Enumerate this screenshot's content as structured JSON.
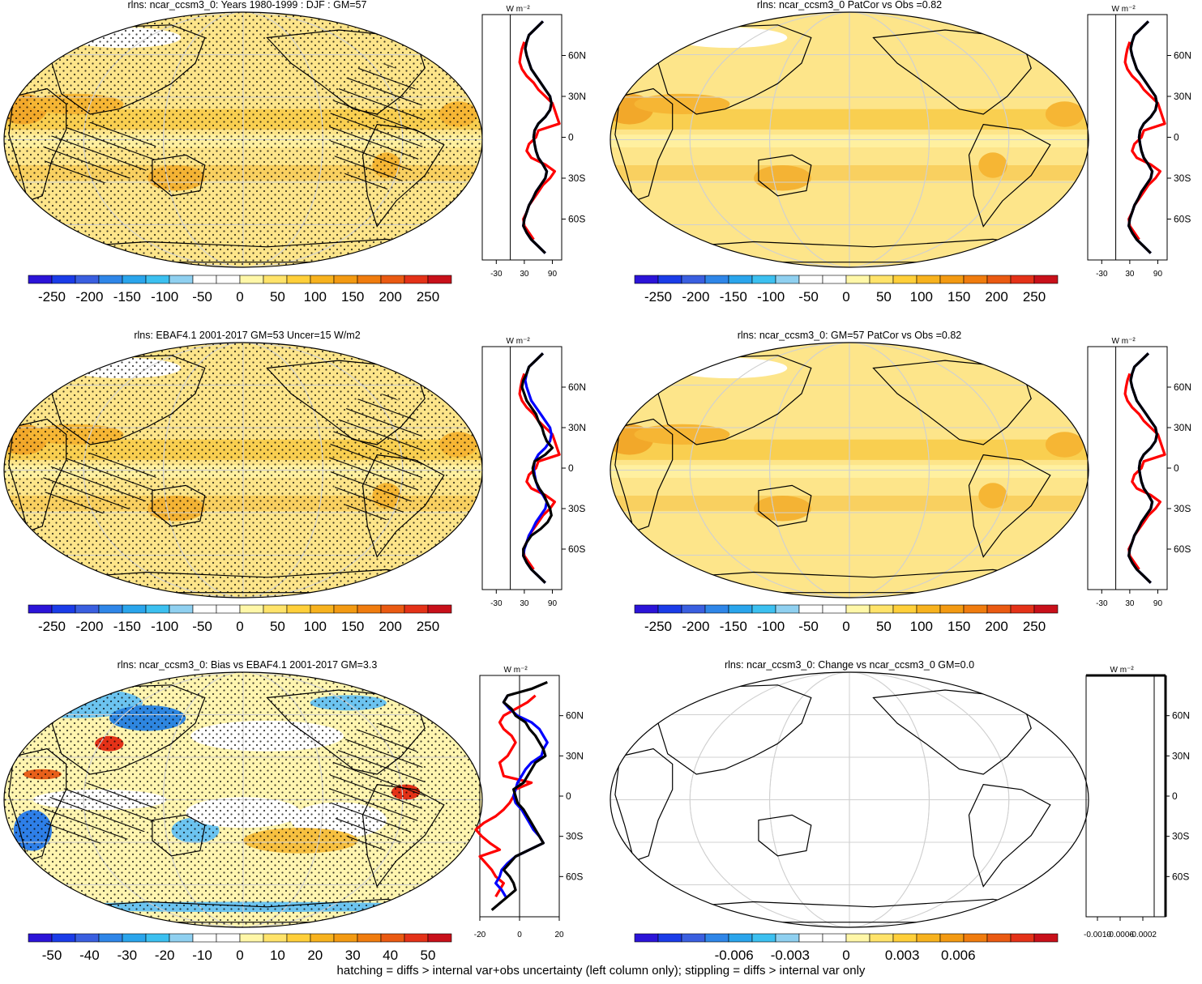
{
  "footnote": "hatching = diffs > internal var+obs uncertainty (left column only); stippling = diffs > internal var only",
  "zonal_unit": "W m⁻²",
  "lat_ticks": [
    "60N",
    "30N",
    "0",
    "30S",
    "60S"
  ],
  "colors": {
    "abs_scale": [
      "#2b14d8",
      "#1b3ce8",
      "#3a5fe0",
      "#2f86e8",
      "#2aa5ec",
      "#3cc0f0",
      "#8fd0f0",
      "#ffffff",
      "#ffffff",
      "#fff7a8",
      "#ffe36a",
      "#ffcf3a",
      "#f7b21e",
      "#f39a12",
      "#f07c0e",
      "#ea5a12",
      "#e43218",
      "#c8101a"
    ],
    "line_model": "#0000ff",
    "line_obs": "#ff0000",
    "line_main": "#000000"
  },
  "chart_data": [
    {
      "type": "heatmap",
      "title": "rlns: ncar_ccsm3_0: Years 1980-1999 : DJF : GM=57",
      "colorbar_labels": [
        "-250",
        "-200",
        "-150",
        "-100",
        "-50",
        "0",
        "50",
        "100",
        "150",
        "200",
        "250"
      ],
      "zonal_xticks": [
        "-30",
        "30",
        "90"
      ],
      "zonal_xlim": [
        -60,
        110
      ],
      "field": "abs_model",
      "hatched": true
    },
    {
      "type": "heatmap",
      "title": "rlns: ncar_ccsm3_0 PatCor vs Obs =0.82",
      "colorbar_labels": [
        "-250",
        "-200",
        "-150",
        "-100",
        "-50",
        "0",
        "50",
        "100",
        "150",
        "200",
        "250"
      ],
      "zonal_xticks": [
        "-30",
        "30",
        "90"
      ],
      "zonal_xlim": [
        -60,
        110
      ],
      "field": "abs_model",
      "hatched": false
    },
    {
      "type": "heatmap",
      "title": "rlns: EBAF4.1 2001-2017 GM=53 Uncer=15 W/m2",
      "colorbar_labels": [
        "-250",
        "-200",
        "-150",
        "-100",
        "-50",
        "0",
        "50",
        "100",
        "150",
        "200",
        "250"
      ],
      "zonal_xticks": [
        "-30",
        "30",
        "90"
      ],
      "zonal_xlim": [
        -60,
        110
      ],
      "field": "abs_obs",
      "hatched": true
    },
    {
      "type": "heatmap",
      "title": "rlns: ncar_ccsm3_0: GM=57 PatCor vs Obs =0.82",
      "colorbar_labels": [
        "-250",
        "-200",
        "-150",
        "-100",
        "-50",
        "0",
        "50",
        "100",
        "150",
        "200",
        "250"
      ],
      "zonal_xticks": [
        "-30",
        "30",
        "90"
      ],
      "zonal_xlim": [
        -60,
        110
      ],
      "field": "abs_model",
      "hatched": false
    },
    {
      "type": "heatmap",
      "title": "rlns: ncar_ccsm3_0: Bias vs EBAF4.1 2001-2017 GM=3.3",
      "colorbar_labels": [
        "-50",
        "-40",
        "-30",
        "-20",
        "-10",
        "0",
        "10",
        "20",
        "30",
        "40",
        "50"
      ],
      "zonal_xticks": [
        "-20",
        "0",
        "20"
      ],
      "zonal_xlim": [
        -20,
        20
      ],
      "field": "bias",
      "hatched": true
    },
    {
      "type": "heatmap",
      "title": "rlns: ncar_ccsm3_0: Change vs ncar_ccsm3_0 GM=0.0",
      "colorbar_labels": [
        "-0.006",
        "-0.003",
        "0",
        "0.003",
        "0.006"
      ],
      "zonal_xticks": [
        "-0.0010",
        "-0.0006",
        "-0.0002"
      ],
      "zonal_xlim": [
        -0.0012,
        0.0002
      ],
      "field": "zero",
      "hatched": false
    }
  ],
  "zonal_profiles": {
    "lat": [
      85,
      80,
      75,
      70,
      65,
      60,
      55,
      50,
      45,
      40,
      35,
      30,
      25,
      20,
      15,
      10,
      5,
      0,
      -5,
      -10,
      -15,
      -20,
      -25,
      -30,
      -35,
      -40,
      -45,
      -50,
      -55,
      -60,
      -65,
      -70,
      -75,
      -80,
      -85
    ],
    "abs_model": [
      70,
      55,
      40,
      35,
      32,
      35,
      40,
      45,
      55,
      65,
      75,
      85,
      88,
      85,
      75,
      60,
      52,
      50,
      52,
      55,
      60,
      70,
      78,
      75,
      65,
      55,
      48,
      40,
      35,
      30,
      28,
      35,
      45,
      60,
      75
    ],
    "abs_obs_red": [
      null,
      null,
      null,
      30,
      25,
      22,
      20,
      25,
      35,
      50,
      60,
      75,
      90,
      95,
      100,
      105,
      60,
      55,
      40,
      35,
      45,
      75,
      95,
      85,
      70,
      60,
      50,
      40,
      35,
      28,
      30,
      40,
      50,
      null,
      null
    ],
    "abs_obs": [
      70,
      55,
      40,
      35,
      28,
      25,
      30,
      35,
      45,
      55,
      60,
      68,
      72,
      78,
      90,
      75,
      52,
      48,
      50,
      55,
      62,
      72,
      78,
      85,
      88,
      80,
      65,
      45,
      35,
      28,
      28,
      35,
      45,
      60,
      75
    ],
    "bias_main": [
      14,
      6,
      -6,
      -8,
      -4,
      -2,
      3,
      5,
      8,
      10,
      12,
      13,
      8,
      6,
      4,
      2,
      -3,
      -2,
      -1,
      2,
      4,
      6,
      8,
      10,
      12,
      5,
      -2,
      -5,
      -8,
      -5,
      -3,
      -2,
      -6,
      -10,
      -14
    ],
    "bias_blue": [
      null,
      null,
      -6,
      -8,
      -5,
      -1,
      6,
      10,
      12,
      14,
      12,
      11,
      6,
      3,
      1,
      -1,
      -2,
      -3,
      -2,
      1,
      3,
      5,
      7,
      10,
      12,
      5,
      -2,
      -6,
      -9,
      -10,
      -12,
      -9,
      -7,
      null,
      null
    ],
    "bias_red": [
      null,
      null,
      8,
      4,
      -2,
      -8,
      -10,
      -8,
      -4,
      -2,
      -4,
      -6,
      -10,
      -9,
      -8,
      6,
      -2,
      -3,
      -5,
      -8,
      -12,
      -18,
      -22,
      -19,
      -15,
      -10,
      -20,
      -17,
      -14,
      -12,
      -8,
      -10,
      -12,
      null,
      null
    ]
  }
}
